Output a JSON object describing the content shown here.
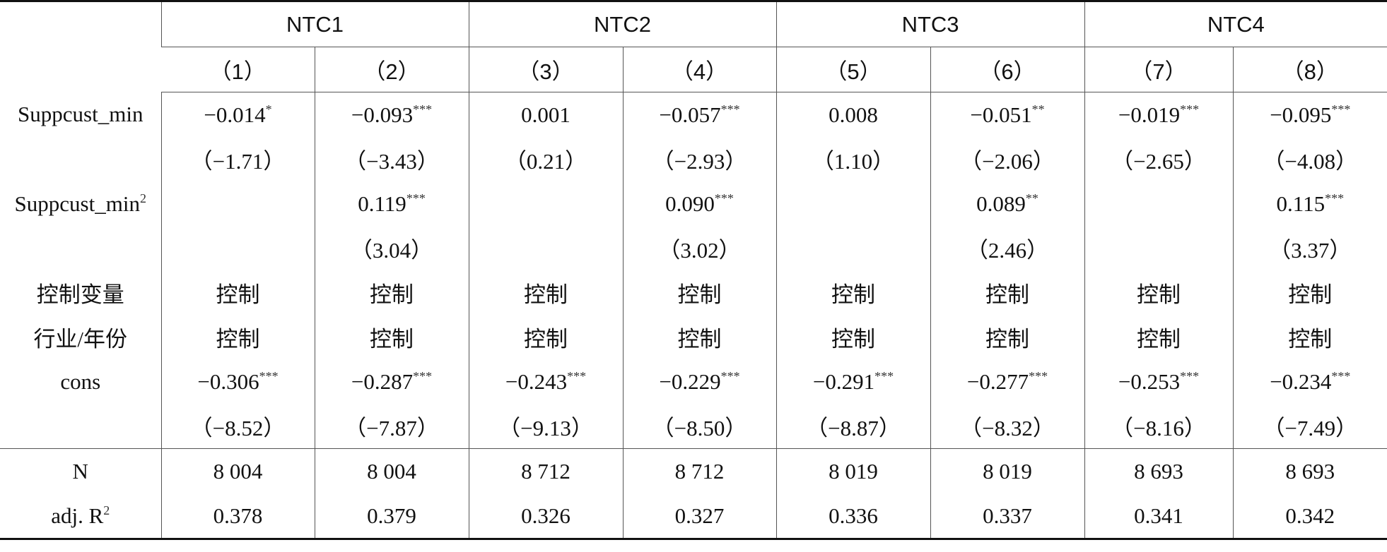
{
  "header": {
    "groups": [
      "NTC1",
      "NTC2",
      "NTC3",
      "NTC4"
    ],
    "subheaders": [
      "（1）",
      "（2）",
      "（3）",
      "（4）",
      "（5）",
      "（6）",
      "（7）",
      "（8）"
    ]
  },
  "rows": [
    {
      "label": "Suppcust_min",
      "cells": [
        {
          "text": "−0.014",
          "sup": "*"
        },
        {
          "text": "−0.093",
          "sup": "***"
        },
        "0.001",
        {
          "text": "−0.057",
          "sup": "***"
        },
        "0.008",
        {
          "text": "−0.051",
          "sup": "**"
        },
        {
          "text": "−0.019",
          "sup": "***"
        },
        {
          "text": "−0.095",
          "sup": "***"
        }
      ]
    },
    {
      "label": null,
      "cells": [
        "（−1.71）",
        "（−3.43）",
        "（0.21）",
        "（−2.93）",
        "（1.10）",
        "（−2.06）",
        "（−2.65）",
        "（−4.08）"
      ]
    },
    {
      "label": {
        "text": "Suppcust_min",
        "sup": "2"
      },
      "cells": [
        null,
        {
          "text": "0.119",
          "sup": "***"
        },
        null,
        {
          "text": "0.090",
          "sup": "***"
        },
        null,
        {
          "text": "0.089",
          "sup": "**"
        },
        null,
        {
          "text": "0.115",
          "sup": "***"
        }
      ]
    },
    {
      "label": null,
      "cells": [
        null,
        "（3.04）",
        null,
        "（3.02）",
        null,
        "（2.46）",
        null,
        "（3.37）"
      ]
    },
    {
      "label": "控制变量",
      "cells": [
        "控制",
        "控制",
        "控制",
        "控制",
        "控制",
        "控制",
        "控制",
        "控制"
      ]
    },
    {
      "label": "行业/年份",
      "cells": [
        "控制",
        "控制",
        "控制",
        "控制",
        "控制",
        "控制",
        "控制",
        "控制"
      ]
    },
    {
      "label": "cons",
      "cells": [
        {
          "text": "−0.306",
          "sup": "***"
        },
        {
          "text": "−0.287",
          "sup": "***"
        },
        {
          "text": "−0.243",
          "sup": "***"
        },
        {
          "text": "−0.229",
          "sup": "***"
        },
        {
          "text": "−0.291",
          "sup": "***"
        },
        {
          "text": "−0.277",
          "sup": "***"
        },
        {
          "text": "−0.253",
          "sup": "***"
        },
        {
          "text": "−0.234",
          "sup": "***"
        }
      ]
    },
    {
      "label": null,
      "cells": [
        "（−8.52）",
        "（−7.87）",
        "（−9.13）",
        "（−8.50）",
        "（−8.87）",
        "（−8.32）",
        "（−8.16）",
        "（−7.49）"
      ]
    }
  ],
  "footer_rows": [
    {
      "label": "N",
      "cells": [
        "8 004",
        "8 004",
        "8 712",
        "8 712",
        "8 019",
        "8 019",
        "8 693",
        "8 693"
      ]
    },
    {
      "label": {
        "text": "adj. R",
        "sup": "2"
      },
      "cells": [
        "0.378",
        "0.379",
        "0.326",
        "0.327",
        "0.336",
        "0.337",
        "0.341",
        "0.342"
      ]
    }
  ]
}
